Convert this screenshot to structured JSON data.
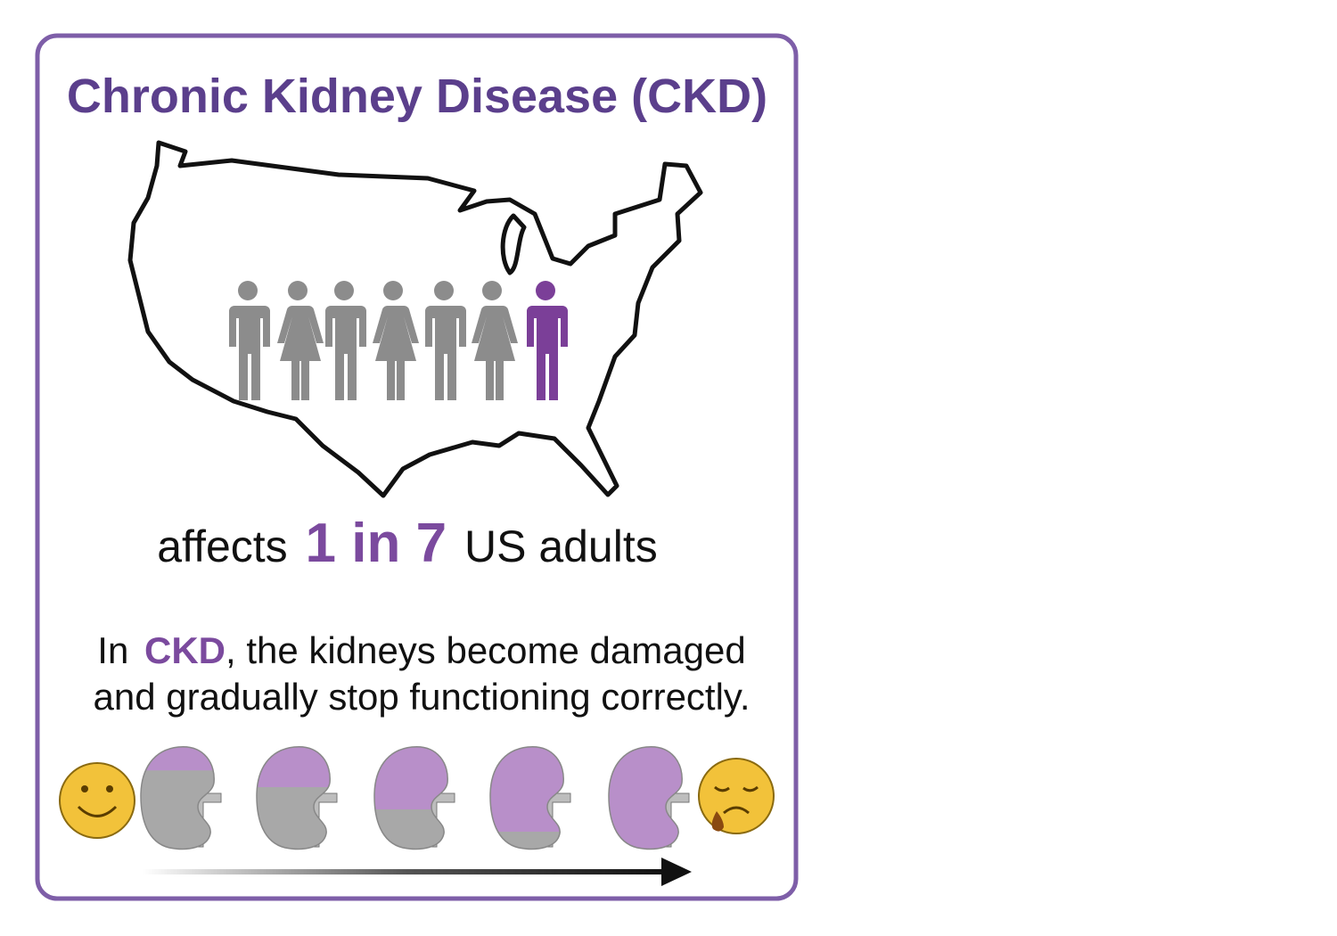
{
  "title": "Chronic Kidney Disease (CKD)",
  "stat": {
    "prefix": "affects",
    "highlight": "1 in 7",
    "suffix": "US adults"
  },
  "description": {
    "line1": {
      "start": "In",
      "highlight": "CKD",
      "rest": ", the kidneys become damaged"
    },
    "line2": "and gradually stop functioning correctly."
  }
}
